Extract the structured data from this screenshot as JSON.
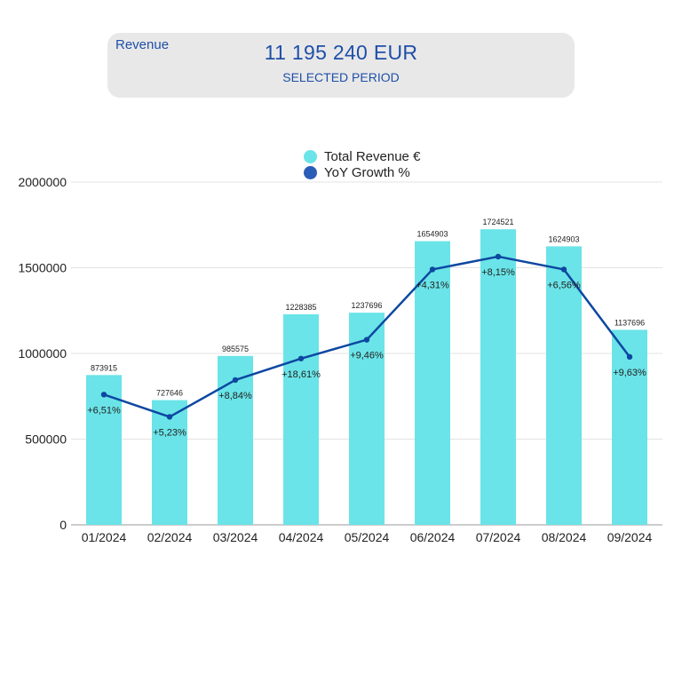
{
  "kpi": {
    "label": "Revenue",
    "value": "11 195 240 EUR",
    "subtitle": "SELECTED PERIOD"
  },
  "colors": {
    "bar": "#6ae4e8",
    "line": "#0d47a1",
    "legend_bar": "#6ae4e8",
    "legend_line": "#2b5cb8"
  },
  "chart_data": {
    "type": "bar",
    "categories": [
      "01/2024",
      "02/2024",
      "03/2024",
      "04/2024",
      "05/2024",
      "06/2024",
      "07/2024",
      "08/2024",
      "09/2024"
    ],
    "series": [
      {
        "name": "Total Revenue €",
        "type": "bar",
        "values": [
          873915,
          727646,
          985575,
          1228385,
          1237696,
          1654903,
          1724521,
          1624903,
          1137696
        ],
        "labels": [
          "873915",
          "727646",
          "985575",
          "1228385",
          "1237696",
          "1654903",
          "1724521",
          "1624903",
          "1137696"
        ]
      },
      {
        "name": "YoY Growth %",
        "type": "line",
        "values": [
          6.51,
          5.23,
          8.84,
          18.61,
          9.46,
          4.31,
          8.15,
          6.56,
          9.63
        ],
        "labels": [
          "+6,51%",
          "+5,23%",
          "+8,84%",
          "+18,61%",
          "+9,46%",
          "+4,31%",
          "+8,15%",
          "+6,56%",
          "+9,63%"
        ],
        "plotted_y": [
          760000,
          630000,
          845000,
          970000,
          1080000,
          1490000,
          1565000,
          1490000,
          980000
        ]
      }
    ],
    "yticks": [
      "0",
      "500000",
      "1000000",
      "1500000",
      "2000000"
    ],
    "ytick_values": [
      0,
      500000,
      1000000,
      1500000,
      2000000
    ],
    "ylim": [
      0,
      2000000
    ],
    "legend_position": "top-center",
    "grid": true
  }
}
